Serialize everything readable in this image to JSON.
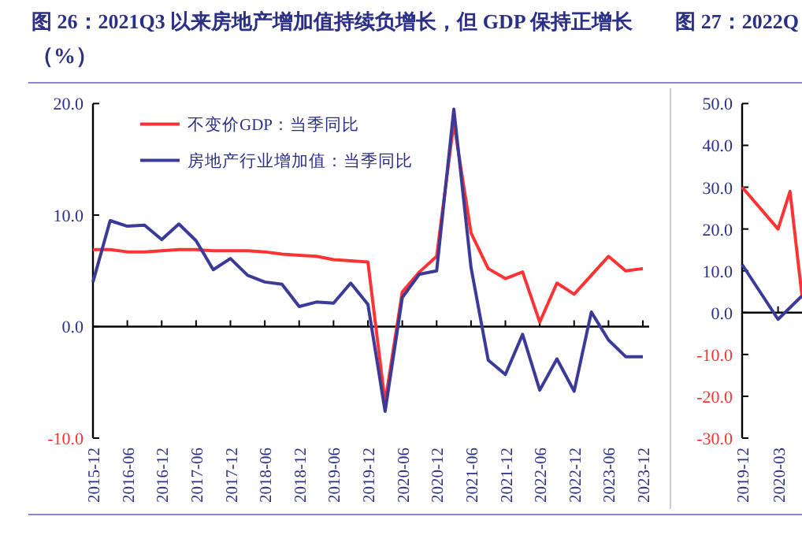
{
  "chart_data": [
    {
      "type": "line",
      "title": "图 26：2021Q3 以来房地产增加值持续负增长，但 GDP 保持正增长",
      "subtitle": "（%）",
      "categories": [
        "2015-12",
        null,
        "2016-06",
        null,
        "2016-12",
        null,
        "2017-06",
        null,
        "2017-12",
        null,
        "2018-06",
        null,
        "2018-12",
        null,
        "2019-06",
        null,
        "2019-12",
        null,
        "2020-06",
        null,
        "2020-12",
        null,
        "2021-06",
        null,
        "2021-12",
        null,
        "2022-06",
        null,
        "2022-12",
        null,
        "2023-06",
        null,
        "2023-12"
      ],
      "series": [
        {
          "name": "不变价GDP：当季同比",
          "color": "#ff3333",
          "values": [
            6.9,
            6.9,
            6.7,
            6.7,
            6.8,
            6.9,
            6.9,
            6.8,
            6.8,
            6.8,
            6.7,
            6.5,
            6.4,
            6.3,
            6.0,
            5.9,
            5.8,
            -6.8,
            3.1,
            4.9,
            6.3,
            18.3,
            8.4,
            5.2,
            4.3,
            4.9,
            0.4,
            3.9,
            2.9,
            4.6,
            6.3,
            5.0,
            5.2
          ]
        },
        {
          "name": "房地产行业增加值：当季同比",
          "color": "#3b3a98",
          "values": [
            4.0,
            9.5,
            9.0,
            9.1,
            7.8,
            9.2,
            7.7,
            5.1,
            6.1,
            4.6,
            4.0,
            3.8,
            1.8,
            2.2,
            2.1,
            3.9,
            2.0,
            -7.6,
            2.6,
            4.7,
            5.0,
            19.5,
            5.3,
            -3.0,
            -4.3,
            -0.7,
            -5.7,
            -2.9,
            -5.8,
            1.3,
            -1.2,
            -2.7,
            -2.7
          ]
        }
      ],
      "ylim": [
        -10,
        20
      ],
      "yticks": [
        {
          "value": -10,
          "label": "-10.0"
        },
        {
          "value": 0,
          "label": "0.0"
        },
        {
          "value": 10,
          "label": "10.0"
        },
        {
          "value": 20,
          "label": "20.0"
        }
      ],
      "legend": "top"
    },
    {
      "type": "line",
      "title": "图 27：2022Q",
      "series": [
        {
          "color": "#ff3333",
          "x": [
            "2019-12",
            "2020-03",
            "2020-04",
            "2020-05"
          ],
          "values": [
            30,
            20,
            29,
            4
          ]
        },
        {
          "color": "#3b3a98",
          "x": [
            "2019-12",
            "2020-03",
            "2020-05"
          ],
          "values": [
            11.5,
            -1.6,
            4
          ]
        }
      ],
      "xlim": [
        "2019-12",
        "2020-05"
      ],
      "xticks": [
        "2019-12",
        "2020-03"
      ],
      "ylim": [
        -30,
        50
      ],
      "yticks": [
        {
          "value": -30,
          "label": "-30.0"
        },
        {
          "value": -20,
          "label": "-20.0"
        },
        {
          "value": -10,
          "label": "-10.0"
        },
        {
          "value": 0,
          "label": "0.0"
        },
        {
          "value": 10,
          "label": "10.0"
        },
        {
          "value": 20,
          "label": "20.0"
        },
        {
          "value": 30,
          "label": "30.0"
        },
        {
          "value": 40,
          "label": "40.0"
        },
        {
          "value": 50,
          "label": "50.0"
        }
      ]
    }
  ]
}
